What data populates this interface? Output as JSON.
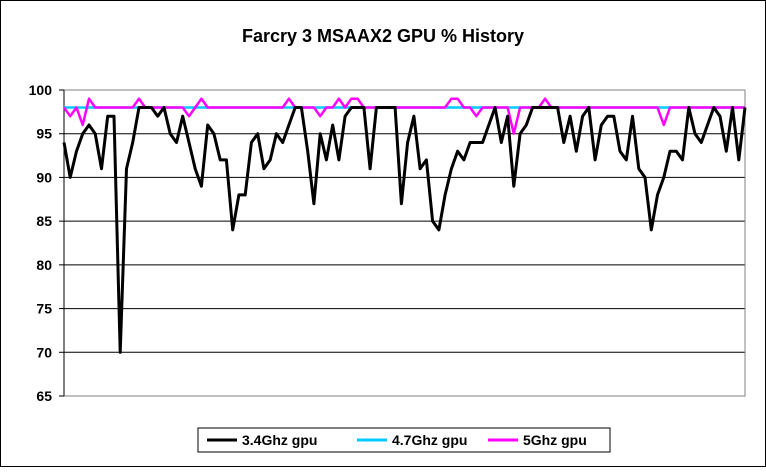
{
  "chart_data": {
    "type": "line",
    "title": "Farcry 3 MSAAX2 GPU % History",
    "xlabel": "",
    "ylabel": "",
    "ylim": [
      65,
      100
    ],
    "yticks": [
      65,
      70,
      75,
      80,
      85,
      90,
      95,
      100
    ],
    "grid": true,
    "legend_position": "bottom",
    "series": [
      {
        "name": "3.4Ghz gpu",
        "color": "#000000",
        "values": [
          94,
          90,
          93,
          95,
          96,
          95,
          91,
          97,
          97,
          70,
          91,
          94,
          98,
          98,
          98,
          97,
          98,
          95,
          94,
          97,
          94,
          91,
          89,
          96,
          95,
          92,
          92,
          84,
          88,
          88,
          94,
          95,
          91,
          92,
          95,
          94,
          96,
          98,
          98,
          93,
          87,
          95,
          92,
          96,
          92,
          97,
          98,
          98,
          98,
          91,
          98,
          98,
          98,
          98,
          87,
          94,
          97,
          91,
          92,
          85,
          84,
          88,
          91,
          93,
          92,
          94,
          94,
          94,
          96,
          98,
          94,
          97,
          89,
          95,
          96,
          98,
          98,
          98,
          98,
          98,
          94,
          97,
          93,
          97,
          98,
          92,
          96,
          97,
          97,
          93,
          92,
          97,
          91,
          90,
          84,
          88,
          90,
          93,
          93,
          92,
          98,
          95,
          94,
          96,
          98,
          97,
          93,
          98,
          92,
          98
        ]
      },
      {
        "name": "4.7Ghz gpu",
        "color": "#00ccff",
        "values": [
          98,
          98,
          98,
          98,
          98,
          98,
          98,
          98,
          98,
          98,
          98,
          98,
          98,
          98,
          98,
          98,
          98,
          98,
          98,
          98,
          98,
          98,
          98,
          98,
          98,
          98,
          98,
          98,
          98,
          98,
          98,
          98,
          98,
          98,
          98,
          98,
          98,
          98,
          98,
          98,
          98,
          98,
          98,
          98,
          98,
          98,
          98,
          98,
          98,
          98,
          98,
          98,
          98,
          98,
          98,
          98,
          98,
          98,
          98,
          98,
          98,
          98,
          98,
          98,
          98,
          98,
          98,
          98,
          98,
          98,
          98,
          98,
          98,
          98,
          98,
          98,
          98,
          98,
          98,
          98,
          98,
          98,
          98,
          98,
          98,
          98,
          98,
          98,
          98,
          98,
          98,
          98,
          98,
          98,
          98,
          98,
          98,
          98,
          98,
          98,
          98,
          98,
          98,
          98,
          98,
          98,
          98,
          98,
          98,
          98
        ]
      },
      {
        "name": "5Ghz gpu",
        "color": "#ff00ff",
        "values": [
          98,
          97,
          98,
          96,
          99,
          98,
          98,
          98,
          98,
          98,
          98,
          98,
          99,
          98,
          98,
          98,
          98,
          98,
          98,
          98,
          97,
          98,
          99,
          98,
          98,
          98,
          98,
          98,
          98,
          98,
          98,
          98,
          98,
          98,
          98,
          98,
          99,
          98,
          98,
          98,
          98,
          97,
          98,
          98,
          99,
          98,
          99,
          99,
          98,
          98,
          98,
          98,
          98,
          98,
          98,
          98,
          98,
          98,
          98,
          98,
          98,
          98,
          99,
          99,
          98,
          98,
          97,
          98,
          98,
          98,
          98,
          98,
          95,
          98,
          98,
          98,
          98,
          99,
          98,
          98,
          98,
          98,
          98,
          98,
          98,
          98,
          98,
          98,
          98,
          98,
          98,
          98,
          98,
          98,
          98,
          98,
          96,
          98,
          98,
          98,
          98,
          98,
          98,
          98,
          98,
          98,
          98,
          98,
          98,
          98
        ]
      }
    ]
  }
}
